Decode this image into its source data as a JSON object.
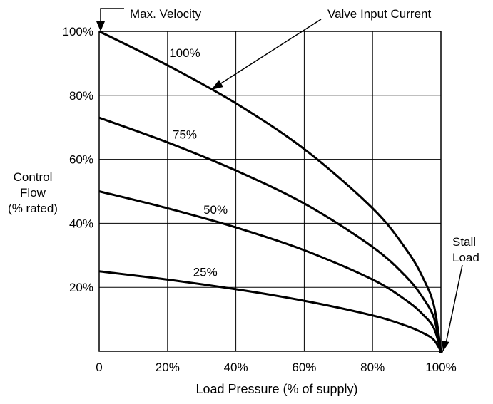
{
  "chart_data": {
    "type": "line",
    "title": "",
    "xlabel": "Load Pressure (% of supply)",
    "ylabel": [
      "Control",
      "Flow",
      "(% rated)"
    ],
    "xlim": [
      0,
      100
    ],
    "ylim": [
      0,
      100
    ],
    "x_ticks": [
      "0",
      "20%",
      "40%",
      "60%",
      "80%",
      "100%"
    ],
    "y_ticks": [
      "20%",
      "40%",
      "60%",
      "80%",
      "100%"
    ],
    "grid": true,
    "annotations": {
      "max_velocity": "Max. Velocity",
      "valve_input_current": "Valve Input Current",
      "stall_load": [
        "Stall",
        "Load"
      ]
    },
    "series": [
      {
        "name": "100%",
        "x": [
          0,
          20,
          40,
          60,
          80,
          90,
          95,
          98,
          100
        ],
        "y": [
          100,
          89.4,
          77.5,
          63.2,
          44.7,
          31.6,
          22.4,
          14.1,
          0
        ]
      },
      {
        "name": "75%",
        "x": [
          0,
          20,
          40,
          60,
          80,
          90,
          95,
          98,
          100
        ],
        "y": [
          73,
          65.3,
          56.5,
          46.2,
          32.6,
          23.1,
          16.3,
          10.3,
          0
        ]
      },
      {
        "name": "50%",
        "x": [
          0,
          20,
          40,
          60,
          80,
          90,
          95,
          98,
          100
        ],
        "y": [
          50,
          44.7,
          38.7,
          31.6,
          22.4,
          15.8,
          11.2,
          7.1,
          0
        ]
      },
      {
        "name": "25%",
        "x": [
          0,
          20,
          40,
          60,
          80,
          90,
          95,
          98,
          100
        ],
        "y": [
          25,
          22.4,
          19.4,
          15.8,
          11.2,
          7.9,
          5.6,
          3.5,
          0
        ]
      }
    ]
  }
}
